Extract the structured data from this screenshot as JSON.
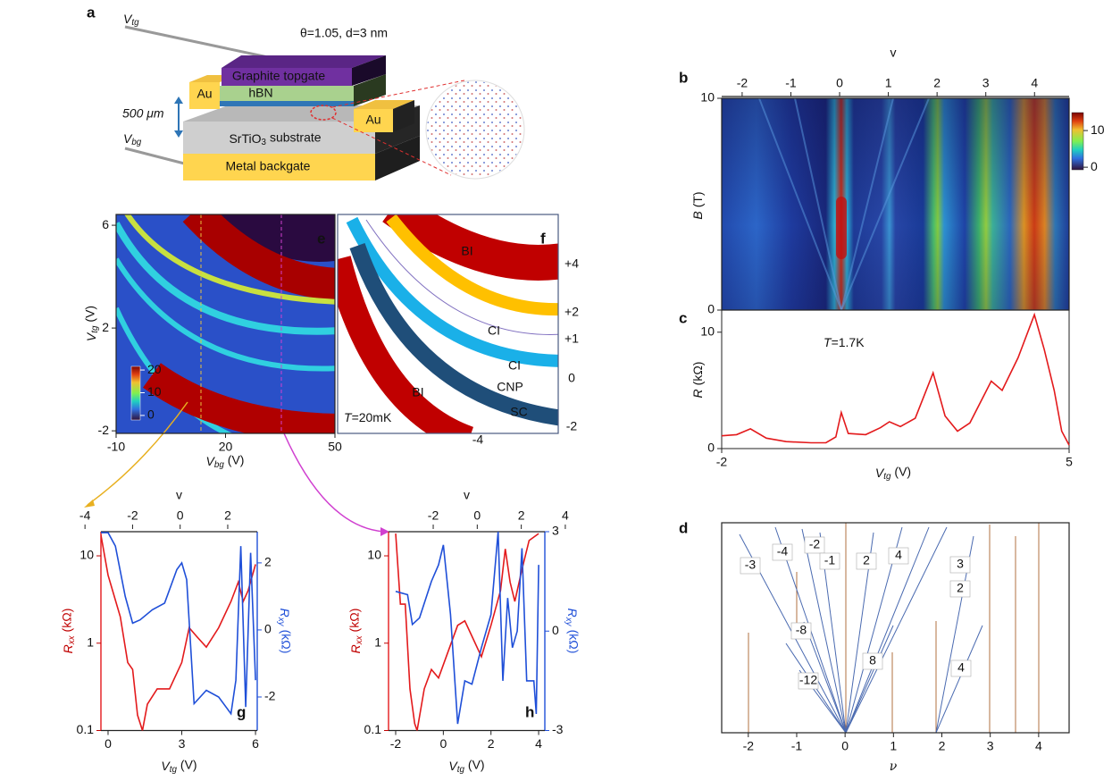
{
  "panel_labels": [
    "a",
    "b",
    "c",
    "d",
    "e",
    "f",
    "g",
    "h"
  ],
  "panel_a": {
    "title": "θ=1.05, d=3 nm",
    "v_tg": {
      "symbol": "V",
      "subscript": "tg"
    },
    "v_bg": {
      "symbol": "V",
      "subscript": "bg"
    },
    "thickness": "500 μm",
    "layers": [
      "Graphite topgate",
      "hBN",
      "Au",
      "Au"
    ],
    "substrate": {
      "text": "SrTiO",
      "subscript": "3",
      "rest": "substrate"
    },
    "backgate": "Metal backgate"
  },
  "panel_b": {
    "type": "heatmap",
    "top_axis_label": "v",
    "xlim": [
      -2.42,
      4.71
    ],
    "xticks": [
      -2,
      -1,
      0,
      1,
      2,
      3,
      4
    ],
    "ylabel": {
      "symbol": "B",
      "unit": "(T)"
    },
    "ylim": [
      0,
      10
    ],
    "yticks": [
      0,
      10
    ],
    "colorbar_lim": [
      -0.7,
      14.9
    ],
    "colorbar_ticks": [
      0,
      10
    ]
  },
  "panel_c": {
    "type": "line",
    "annotation": {
      "symbol": "T",
      "text": "=1.7K"
    },
    "xlabel": {
      "symbol": "V",
      "subscript": "tg",
      "unit": "(V)"
    },
    "ylabel": {
      "symbol": "R",
      "unit": "(kΩ)"
    },
    "xlim": [
      -2,
      5
    ],
    "xticks": [
      -2,
      5
    ],
    "ylim": [
      0,
      11.9
    ],
    "yticks": [
      0,
      10
    ],
    "series": [
      {
        "color": "#e31a1c",
        "x": [
          -2,
          -1.7,
          -1.42,
          -1.1,
          -0.7,
          -0.2,
          0.1,
          0.3,
          0.41,
          0.55,
          0.9,
          1.2,
          1.38,
          1.6,
          1.9,
          2.26,
          2.5,
          2.75,
          3.0,
          3.43,
          3.65,
          3.97,
          4.3,
          4.5,
          4.7,
          4.85,
          5
        ],
        "values": [
          1.1,
          1.2,
          1.7,
          0.9,
          0.6,
          0.5,
          0.5,
          1.0,
          3.1,
          1.3,
          1.2,
          1.8,
          2.3,
          1.9,
          2.6,
          6.5,
          2.8,
          1.5,
          2.2,
          5.8,
          5.0,
          7.8,
          11.5,
          8.5,
          5,
          1.5,
          0.3
        ]
      }
    ]
  },
  "panel_d": {
    "type": "fan-diagram",
    "xlabel": "ν",
    "xlim": [
      -2.55,
      4.63
    ],
    "xticks": [
      -2,
      -1,
      0,
      1,
      2,
      3,
      4
    ],
    "line_labels": [
      -3,
      -4,
      -2,
      -1,
      2,
      4,
      3,
      2,
      -8,
      -12,
      8,
      4
    ]
  },
  "panel_e": {
    "type": "heatmap",
    "xlabel": {
      "symbol": "V",
      "subscript": "bg",
      "unit": "(V)"
    },
    "ylabel": {
      "symbol": "V",
      "subscript": "tg",
      "unit": "(V)"
    },
    "xlim": [
      -10,
      50
    ],
    "xticks": [
      -10,
      20,
      50
    ],
    "ylim": [
      -2.1,
      6.42
    ],
    "yticks": [
      -2,
      2,
      6
    ],
    "colorbar_lim": [
      -2,
      21.6
    ],
    "colorbar_ticks": [
      0,
      10,
      20
    ]
  },
  "panel_f": {
    "type": "diagram",
    "region_labels": [
      "BI",
      "CI",
      "CI",
      "CNP",
      "BI",
      "SC"
    ],
    "annotation": {
      "symbol": "T",
      "text": "=20mK"
    },
    "filling_labels": [
      {
        "value": 4,
        "label": "+4"
      },
      {
        "value": 2,
        "label": "+2"
      },
      {
        "value": 1,
        "label": "+1"
      },
      0,
      -2
    ],
    "xticks": [
      -4
    ]
  },
  "panel_g": {
    "type": "line",
    "top_axis_label": "v",
    "nulim": [
      -3.33,
      3.24
    ],
    "nuticks": [
      -4,
      -2,
      0,
      2
    ],
    "xlabel": {
      "symbol": "V",
      "subscript": "tg",
      "unit": "(V)"
    },
    "ylabel": {
      "symbol": "R",
      "subscript": "xx",
      "unit": "(kΩ)"
    },
    "y2label": {
      "symbol": "R",
      "subscript": "xy",
      "unit": "(kΩ)"
    },
    "xlim": [
      -0.29,
      6.07
    ],
    "xticks": [
      0,
      3,
      6
    ],
    "ylim": [
      0.1,
      18.9
    ],
    "yticks": [
      0.1,
      1,
      10
    ],
    "log_y": true,
    "y2lim": [
      -3,
      2.93
    ],
    "y2ticks": [
      -2,
      0,
      2
    ],
    "series": [
      {
        "color": "#e31a1c",
        "x": [
          -0.3,
          0,
          0.5,
          0.8,
          1.0,
          1.2,
          1.4,
          1.6,
          2,
          2.5,
          3,
          3.3,
          3.6,
          4,
          4.5,
          5,
          5.3,
          5.5,
          5.7,
          6
        ],
        "values": [
          18,
          6,
          2,
          0.6,
          0.5,
          0.15,
          0.1,
          0.2,
          0.3,
          0.3,
          0.6,
          1.5,
          1.2,
          0.9,
          1.5,
          3,
          5,
          3,
          4,
          8
        ]
      },
      {
        "color": "#1f4fd8",
        "axis": "y2",
        "x": [
          -0.3,
          0,
          0.3,
          0.7,
          1.0,
          1.3,
          1.8,
          2.3,
          2.8,
          3.0,
          3.2,
          3.5,
          4.0,
          4.5,
          5.0,
          5.2,
          5.4,
          5.6,
          5.8,
          6.0
        ],
        "values": [
          2.9,
          2.9,
          2.5,
          1,
          0.2,
          0.3,
          0.6,
          0.8,
          1.8,
          2.0,
          1.5,
          -2.2,
          -1.8,
          -2.0,
          -2.5,
          -1.5,
          2.5,
          -2.3,
          2.3,
          -1.5
        ]
      }
    ]
  },
  "panel_h": {
    "type": "line",
    "top_axis_label": "v",
    "nulim": [
      -4.03,
      3.07
    ],
    "nuticks": [
      -2,
      0,
      2,
      4
    ],
    "xlabel": {
      "symbol": "V",
      "subscript": "tg",
      "unit": "(V)"
    },
    "ylabel": {
      "symbol": "R",
      "subscript": "xx",
      "unit": "(kΩ)"
    },
    "y2label": {
      "symbol": "R",
      "subscript": "xy",
      "unit": "(kΩ)"
    },
    "xlim": [
      -2.3,
      4.26
    ],
    "xticks": [
      -2,
      0,
      2,
      4
    ],
    "ylim": [
      0.1,
      18.9
    ],
    "yticks": [
      0.1,
      1,
      10
    ],
    "log_y": true,
    "y2lim": [
      -3,
      3
    ],
    "y2ticks": [
      -3,
      0,
      3
    ],
    "series": [
      {
        "color": "#e31a1c",
        "x": [
          -2,
          -1.8,
          -1.6,
          -1.4,
          -1.2,
          -1.1,
          -0.8,
          -0.5,
          -0.2,
          0.2,
          0.6,
          0.9,
          1.2,
          1.6,
          2.0,
          2.4,
          2.6,
          2.8,
          3.0,
          3.3,
          3.6,
          4.0
        ],
        "values": [
          18,
          2.8,
          2.8,
          0.3,
          0.12,
          0.1,
          0.3,
          0.5,
          0.4,
          0.8,
          1.6,
          1.8,
          1.2,
          0.7,
          1.6,
          4,
          12,
          5,
          3,
          7,
          15,
          18
        ]
      },
      {
        "color": "#1f4fd8",
        "axis": "y2",
        "x": [
          -2,
          -1.5,
          -1.3,
          -1.0,
          -0.5,
          -0.2,
          0,
          0.3,
          0.6,
          0.9,
          1.2,
          1.6,
          2.0,
          2.3,
          2.5,
          2.7,
          2.9,
          3.1,
          3.3,
          3.5,
          3.8,
          3.9,
          4.0
        ],
        "values": [
          1.2,
          1.1,
          0.2,
          0.4,
          1.5,
          2,
          2.6,
          0.5,
          -2.8,
          -1.5,
          -1.6,
          -0.5,
          0.5,
          3,
          -1.5,
          1,
          -0.5,
          0,
          2.5,
          -1.5,
          -1.5,
          -2.5,
          2
        ]
      }
    ]
  }
}
